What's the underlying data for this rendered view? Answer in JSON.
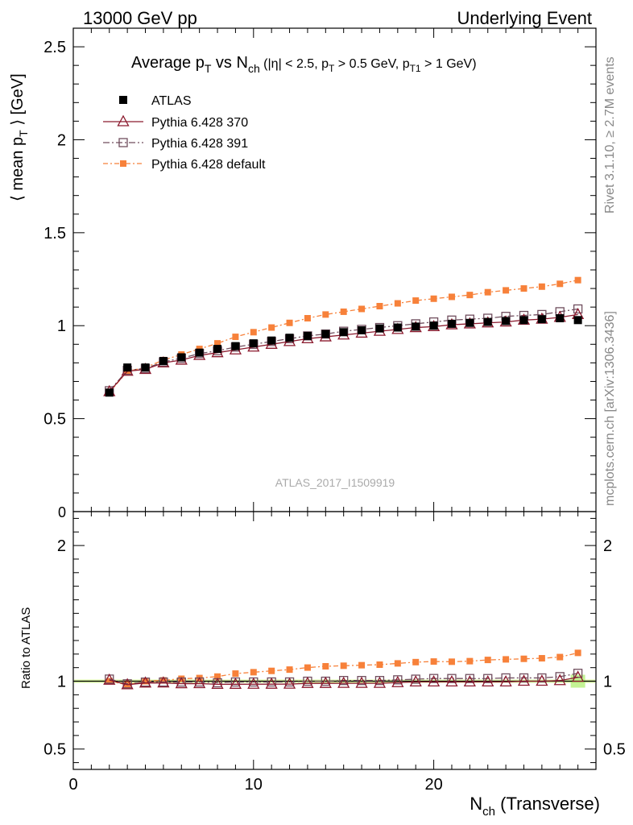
{
  "header": {
    "left": "13000 GeV pp",
    "right": "Underlying Event"
  },
  "side": {
    "rivet": "Rivet 3.1.10, ≥ 2.7M events",
    "mcplots": "mcplots.cern.ch [arXiv:1306.3436]"
  },
  "chart_data": {
    "type": "line",
    "title": {
      "prefix": "Average p",
      "pt_sub": "T",
      "vs": " vs N",
      "ch_sub": "ch",
      "cuts_open": " (|η| < 2.5, p",
      "cuts_pt_sub": "T",
      "cuts_mid": " > 0.5 GeV, p",
      "cuts_t1_sub": "T1",
      "cuts_close": " > 1 GeV)"
    },
    "watermark": "ATLAS_2017_I1509919",
    "ylabel": {
      "open": "⟨ mean p",
      "sub": "T",
      "close": " ⟩ [GeV]"
    },
    "ratio_ylabel": "Ratio to ATLAS",
    "xlabel": {
      "main": "N",
      "sub": "ch",
      "suffix": " (Transverse)"
    },
    "xlim": [
      0,
      29
    ],
    "ylim": [
      0,
      2.6
    ],
    "ratio_ylim": [
      0.35,
      2.25
    ],
    "x_ticks": [
      0,
      10,
      20
    ],
    "x_tick_labels": [
      "0",
      "10",
      "20"
    ],
    "y_ticks": [
      0.5,
      1,
      1.5,
      2,
      2.5
    ],
    "y_tick_labels": [
      "0.5",
      "1",
      "1.5",
      "2",
      "2.5"
    ],
    "y_zero_label": "0",
    "ratio_ticks": [
      0.5,
      1,
      2
    ],
    "ratio_tick_labels": [
      "0.5",
      "1",
      "2"
    ],
    "x": [
      2,
      3,
      4,
      5,
      6,
      7,
      8,
      9,
      10,
      11,
      12,
      13,
      14,
      15,
      16,
      17,
      18,
      19,
      20,
      21,
      22,
      23,
      24,
      25,
      26,
      27,
      28
    ],
    "series": [
      {
        "name": "ATLAS",
        "color": "#000000",
        "marker": "filled-square",
        "values": [
          0.64,
          0.775,
          0.775,
          0.81,
          0.83,
          0.855,
          0.875,
          0.89,
          0.905,
          0.92,
          0.935,
          0.945,
          0.955,
          0.965,
          0.975,
          0.985,
          0.99,
          0.995,
          1.0,
          1.01,
          1.015,
          1.02,
          1.025,
          1.03,
          1.035,
          1.04,
          1.03
        ]
      },
      {
        "name": "Pythia 6.428 370",
        "color": "#8b1a2e",
        "marker": "open-triangle",
        "values": [
          0.645,
          0.755,
          0.765,
          0.8,
          0.815,
          0.84,
          0.855,
          0.87,
          0.885,
          0.9,
          0.915,
          0.93,
          0.94,
          0.95,
          0.96,
          0.97,
          0.98,
          0.99,
          0.995,
          1.005,
          1.01,
          1.015,
          1.02,
          1.03,
          1.035,
          1.045,
          1.06
        ]
      },
      {
        "name": "Pythia 6.428 391",
        "color": "#704e5e",
        "marker": "open-square",
        "values": [
          0.65,
          0.76,
          0.77,
          0.805,
          0.825,
          0.85,
          0.865,
          0.885,
          0.9,
          0.915,
          0.93,
          0.945,
          0.955,
          0.97,
          0.98,
          0.99,
          1.0,
          1.01,
          1.02,
          1.03,
          1.035,
          1.04,
          1.05,
          1.055,
          1.06,
          1.075,
          1.09
        ]
      },
      {
        "name": "Pythia 6.428 default",
        "color": "#f7813a",
        "marker": "filled-small-square",
        "values": [
          0.64,
          0.755,
          0.775,
          0.815,
          0.845,
          0.875,
          0.905,
          0.94,
          0.965,
          0.99,
          1.015,
          1.04,
          1.06,
          1.075,
          1.09,
          1.105,
          1.12,
          1.135,
          1.145,
          1.155,
          1.165,
          1.18,
          1.19,
          1.2,
          1.21,
          1.225,
          1.245
        ]
      }
    ],
    "legend_position": "top-left"
  }
}
